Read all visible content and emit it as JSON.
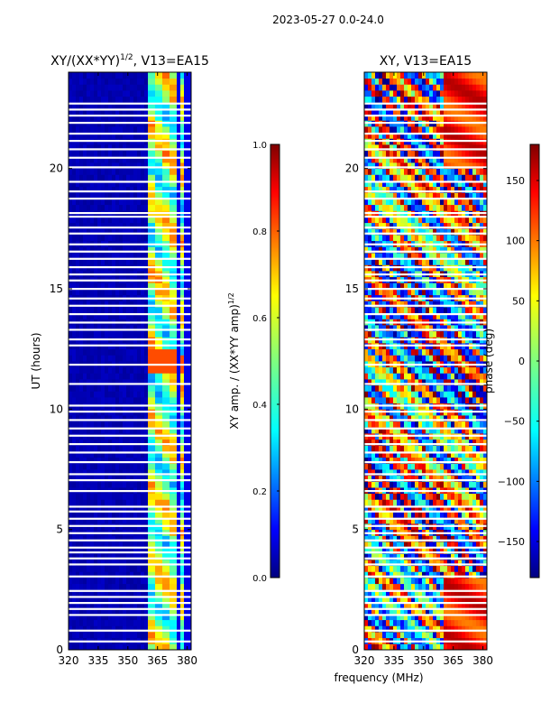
{
  "figure": {
    "suptitle": "2023-05-27 0.0-24.0",
    "xlabel_shared": "frequency (MHz)"
  },
  "colors": {
    "jet": [
      "#00007f",
      "#0000ff",
      "#007fff",
      "#00ffff",
      "#7fff7f",
      "#ffff00",
      "#ff7f00",
      "#ff0000",
      "#7f0000"
    ],
    "gap": "#ffffff",
    "axes": "#000000"
  },
  "chart_data": [
    {
      "type": "heatmap",
      "title_main": "XY/(XX*YY)",
      "title_sup": "1/2",
      "title_rest": ", V13=EA15",
      "ylabel": "UT (hours)",
      "xlabel": "",
      "x_range": [
        320,
        382
      ],
      "y_range": [
        0,
        24
      ],
      "xticks": [
        320,
        335,
        350,
        365,
        380
      ],
      "yticks": [
        0,
        5,
        10,
        15,
        20
      ],
      "colormap": "jet",
      "pattern": "amplitude",
      "colorbar": {
        "label_main": "XY amp. / (XX*YY amp)",
        "label_sup": "1/2",
        "range": [
          0.0,
          1.0
        ],
        "ticks": [
          "0.0",
          "0.2",
          "0.4",
          "0.6",
          "0.8",
          "1.0"
        ],
        "tick_values": [
          0.0,
          0.2,
          0.4,
          0.6,
          0.8,
          1.0
        ]
      },
      "data_gap_hours": [
        0.35,
        0.8,
        1.45,
        1.7,
        1.95,
        2.2,
        2.45,
        3.05,
        3.55,
        3.8,
        4.05,
        4.25,
        4.55,
        4.85,
        5.15,
        5.45,
        5.75,
        5.95,
        6.6,
        7.05,
        7.3,
        7.8,
        8.2,
        8.55,
        8.9,
        9.2,
        9.55,
        9.9,
        10.15,
        11.05,
        11.85,
        12.65,
        12.9,
        13.3,
        13.6,
        13.95,
        14.3,
        14.6,
        15.0,
        15.35,
        15.6,
        15.9,
        16.25,
        16.55,
        16.85,
        17.3,
        17.55,
        18.0,
        18.15,
        18.75,
        19.05,
        19.45,
        20.05,
        20.45,
        20.8,
        21.15,
        21.45,
        21.9,
        22.2,
        22.45,
        22.7
      ]
    },
    {
      "type": "heatmap",
      "title_main": "XY, V13=EA15",
      "title_sup": "",
      "title_rest": "",
      "ylabel": "",
      "xlabel": "frequency (MHz)",
      "x_range": [
        320,
        382
      ],
      "y_range": [
        0,
        24
      ],
      "xticks": [
        320,
        335,
        350,
        365,
        380
      ],
      "yticks": [
        0,
        5,
        10,
        15,
        20
      ],
      "colormap": "jet",
      "pattern": "phase",
      "colorbar": {
        "label_main": "phase (deg)",
        "label_sup": "",
        "range": [
          -180,
          180
        ],
        "ticks": [
          "-150",
          "-100",
          "-50",
          "0",
          "50",
          "100",
          "150"
        ],
        "tick_values": [
          -150,
          -100,
          -50,
          0,
          50,
          100,
          150
        ]
      },
      "data_gap_hours": [
        0.35,
        0.8,
        1.45,
        1.7,
        1.95,
        2.2,
        2.45,
        3.05,
        3.55,
        3.8,
        4.05,
        4.25,
        4.55,
        4.85,
        5.15,
        5.45,
        5.75,
        5.95,
        6.6,
        7.05,
        7.3,
        7.8,
        8.2,
        8.55,
        8.9,
        9.2,
        9.55,
        9.9,
        10.15,
        11.05,
        11.85,
        12.65,
        12.9,
        13.3,
        13.6,
        13.95,
        14.3,
        14.6,
        15.0,
        15.35,
        15.6,
        15.9,
        16.25,
        16.55,
        16.85,
        17.3,
        17.55,
        18.0,
        18.15,
        18.75,
        19.05,
        19.45,
        20.05,
        20.45,
        20.8,
        21.15,
        21.45,
        21.9,
        22.2,
        22.45,
        22.7
      ]
    }
  ]
}
